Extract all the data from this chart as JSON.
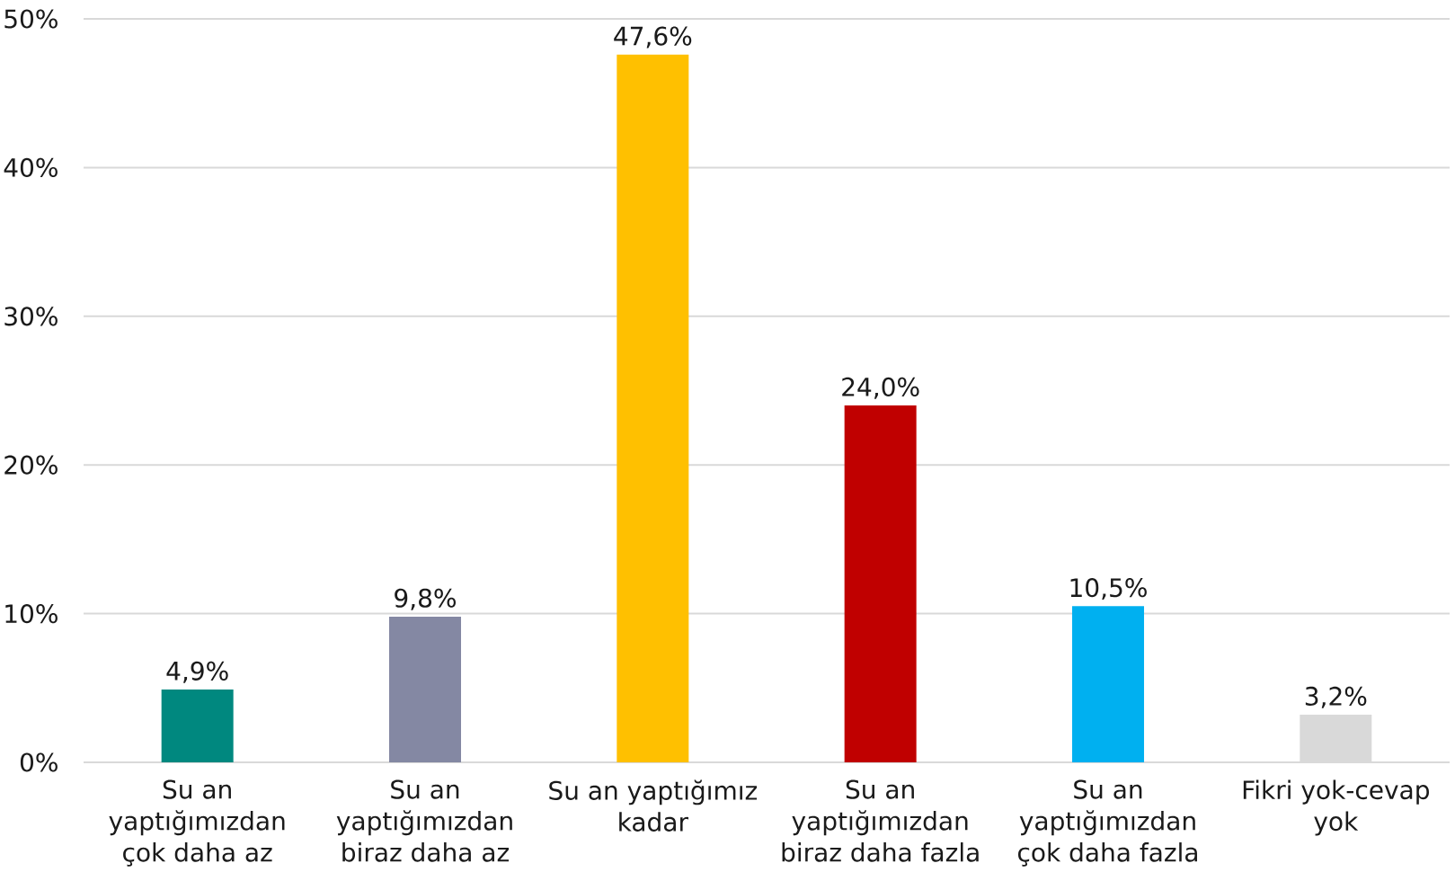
{
  "chart_data": {
    "type": "bar",
    "categories": [
      "Su an yaptığımızdan çok daha az",
      "Su an yaptığımızdan biraz daha az",
      "Su an yaptığımız kadar",
      "Su an yaptığımızdan biraz daha fazla",
      "Su an yaptığımızdan çok daha fazla",
      "Fikri yok-cevap yok"
    ],
    "values": [
      4.9,
      9.8,
      47.6,
      24.0,
      10.5,
      3.2
    ],
    "colors": [
      "#00887F",
      "#8488A3",
      "#FFC000",
      "#C00000",
      "#00B0F0",
      "#D9D9D9"
    ],
    "value_labels": [
      "4,9%",
      "9,8%",
      "47,6%",
      "24,0%",
      "10,5%",
      "3,2%"
    ],
    "ylim": [
      0,
      50
    ],
    "yticks": [
      {
        "value": 0,
        "label": "0%"
      },
      {
        "value": 10,
        "label": "10%"
      },
      {
        "value": 20,
        "label": "20%"
      },
      {
        "value": 30,
        "label": "30%"
      },
      {
        "value": 40,
        "label": "40%"
      },
      {
        "value": 50,
        "label": "50%"
      }
    ],
    "grid": "y"
  }
}
